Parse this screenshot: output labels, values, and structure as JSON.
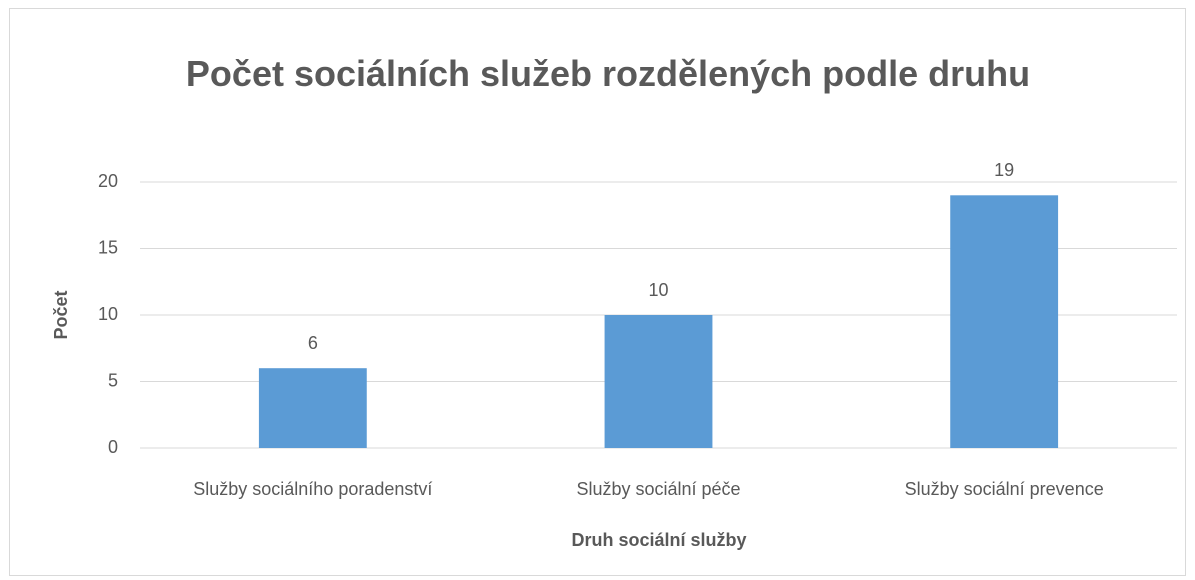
{
  "chart_data": {
    "type": "bar",
    "title": "Počet sociálních služeb rozdělených podle druhu",
    "x_label": "Druh sociální služby",
    "y_label": "Počet",
    "categories": [
      "Služby sociálního poradenství",
      "Služby sociální péče",
      "Služby sociální prevence"
    ],
    "values": [
      6,
      10,
      19
    ],
    "color": "#5b9bd5",
    "ylim": [
      0,
      20
    ],
    "yticks": [
      0,
      5,
      10,
      15,
      20
    ],
    "grid": true
  }
}
